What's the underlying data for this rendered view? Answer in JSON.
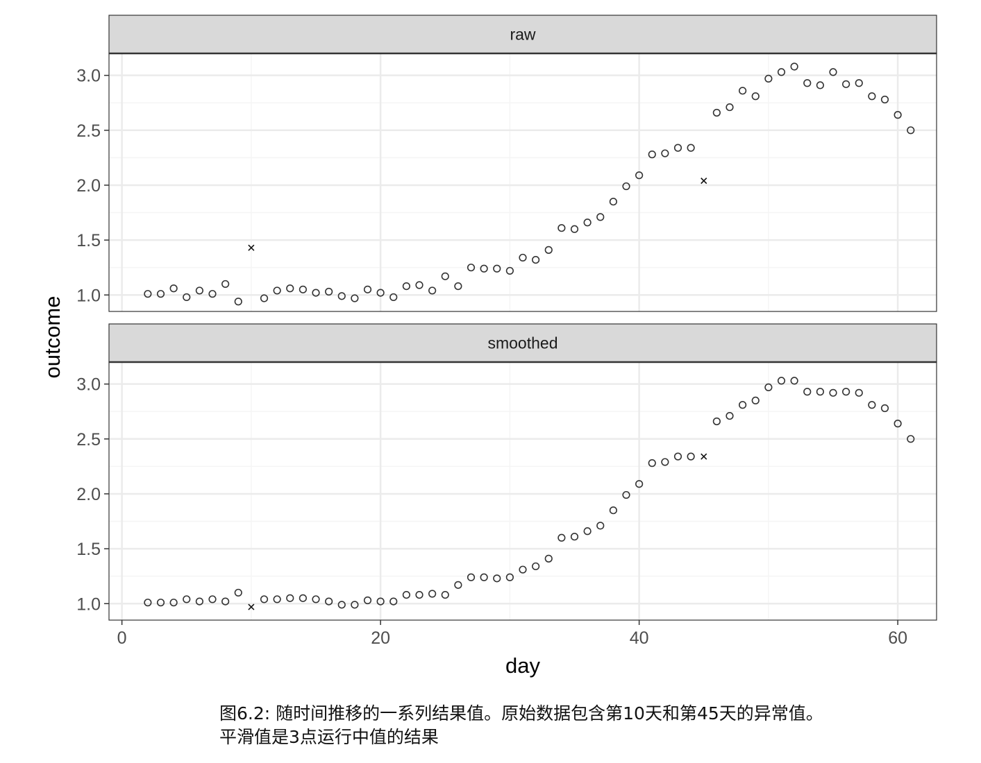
{
  "chart_data": {
    "type": "scatter",
    "xlabel": "day",
    "ylabel": "outcome",
    "xlim": [
      -1,
      63
    ],
    "x_ticks": [
      0,
      20,
      40,
      60
    ],
    "ylim": [
      0.85,
      3.2
    ],
    "y_ticks": [
      1.0,
      1.5,
      2.0,
      2.5,
      3.0
    ],
    "y_tick_labels": [
      "1.0",
      "1.5",
      "2.0",
      "2.5",
      "3.0"
    ],
    "grid": true,
    "legend": "none",
    "marker_open_circle": "normal point",
    "marker_cross": "anomaly",
    "panels": [
      {
        "strip_label": "raw",
        "points": [
          [
            2,
            1.01
          ],
          [
            3,
            1.01
          ],
          [
            4,
            1.06
          ],
          [
            5,
            0.98
          ],
          [
            6,
            1.04
          ],
          [
            7,
            1.01
          ],
          [
            8,
            1.1
          ],
          [
            9,
            0.94
          ],
          [
            11,
            0.97
          ],
          [
            12,
            1.04
          ],
          [
            13,
            1.06
          ],
          [
            14,
            1.05
          ],
          [
            15,
            1.02
          ],
          [
            16,
            1.03
          ],
          [
            17,
            0.99
          ],
          [
            18,
            0.97
          ],
          [
            19,
            1.05
          ],
          [
            20,
            1.02
          ],
          [
            21,
            0.98
          ],
          [
            22,
            1.08
          ],
          [
            23,
            1.09
          ],
          [
            24,
            1.04
          ],
          [
            25,
            1.17
          ],
          [
            26,
            1.08
          ],
          [
            27,
            1.25
          ],
          [
            28,
            1.24
          ],
          [
            29,
            1.24
          ],
          [
            30,
            1.22
          ],
          [
            31,
            1.34
          ],
          [
            32,
            1.32
          ],
          [
            33,
            1.41
          ],
          [
            34,
            1.61
          ],
          [
            35,
            1.6
          ],
          [
            36,
            1.66
          ],
          [
            37,
            1.71
          ],
          [
            38,
            1.85
          ],
          [
            39,
            1.99
          ],
          [
            40,
            2.09
          ],
          [
            41,
            2.28
          ],
          [
            42,
            2.29
          ],
          [
            43,
            2.34
          ],
          [
            44,
            2.34
          ],
          [
            46,
            2.66
          ],
          [
            47,
            2.71
          ],
          [
            48,
            2.86
          ],
          [
            49,
            2.81
          ],
          [
            50,
            2.97
          ],
          [
            51,
            3.03
          ],
          [
            52,
            3.08
          ],
          [
            53,
            2.93
          ],
          [
            54,
            2.91
          ],
          [
            55,
            3.03
          ],
          [
            56,
            2.92
          ],
          [
            57,
            2.93
          ],
          [
            58,
            2.81
          ],
          [
            59,
            2.78
          ],
          [
            60,
            2.64
          ],
          [
            61,
            2.5
          ]
        ],
        "anomalies": [
          [
            10,
            1.43
          ],
          [
            45,
            2.04
          ]
        ]
      },
      {
        "strip_label": "smoothed",
        "points": [
          [
            2,
            1.01
          ],
          [
            3,
            1.01
          ],
          [
            4,
            1.01
          ],
          [
            5,
            1.04
          ],
          [
            6,
            1.02
          ],
          [
            7,
            1.04
          ],
          [
            8,
            1.02
          ],
          [
            9,
            1.1
          ],
          [
            11,
            1.04
          ],
          [
            12,
            1.04
          ],
          [
            13,
            1.05
          ],
          [
            14,
            1.05
          ],
          [
            15,
            1.04
          ],
          [
            16,
            1.02
          ],
          [
            17,
            0.99
          ],
          [
            18,
            0.99
          ],
          [
            19,
            1.03
          ],
          [
            20,
            1.02
          ],
          [
            21,
            1.02
          ],
          [
            22,
            1.08
          ],
          [
            23,
            1.08
          ],
          [
            24,
            1.09
          ],
          [
            25,
            1.08
          ],
          [
            26,
            1.17
          ],
          [
            27,
            1.24
          ],
          [
            28,
            1.24
          ],
          [
            29,
            1.23
          ],
          [
            30,
            1.24
          ],
          [
            31,
            1.31
          ],
          [
            32,
            1.34
          ],
          [
            33,
            1.41
          ],
          [
            34,
            1.6
          ],
          [
            35,
            1.61
          ],
          [
            36,
            1.66
          ],
          [
            37,
            1.71
          ],
          [
            38,
            1.85
          ],
          [
            39,
            1.99
          ],
          [
            40,
            2.09
          ],
          [
            41,
            2.28
          ],
          [
            42,
            2.29
          ],
          [
            43,
            2.34
          ],
          [
            44,
            2.34
          ],
          [
            46,
            2.66
          ],
          [
            47,
            2.71
          ],
          [
            48,
            2.81
          ],
          [
            49,
            2.85
          ],
          [
            50,
            2.97
          ],
          [
            51,
            3.03
          ],
          [
            52,
            3.03
          ],
          [
            53,
            2.93
          ],
          [
            54,
            2.93
          ],
          [
            55,
            2.92
          ],
          [
            56,
            2.93
          ],
          [
            57,
            2.92
          ],
          [
            58,
            2.81
          ],
          [
            59,
            2.78
          ],
          [
            60,
            2.64
          ],
          [
            61,
            2.5
          ]
        ],
        "anomalies": [
          [
            10,
            0.97
          ],
          [
            45,
            2.34
          ]
        ]
      }
    ]
  },
  "caption": {
    "line1": "图6.2: 随时间推移的一系列结果值。原始数据包含第10天和第45天的异常值。",
    "line2": "平滑值是3点运行中值的结果"
  },
  "colors": {
    "strip_fill": "#d9d9d9",
    "grid_major": "#ebebeb",
    "grid_minor": "#f5f5f5",
    "border": "#333333",
    "axis_text": "#4d4d4d",
    "marker": "#333333"
  }
}
